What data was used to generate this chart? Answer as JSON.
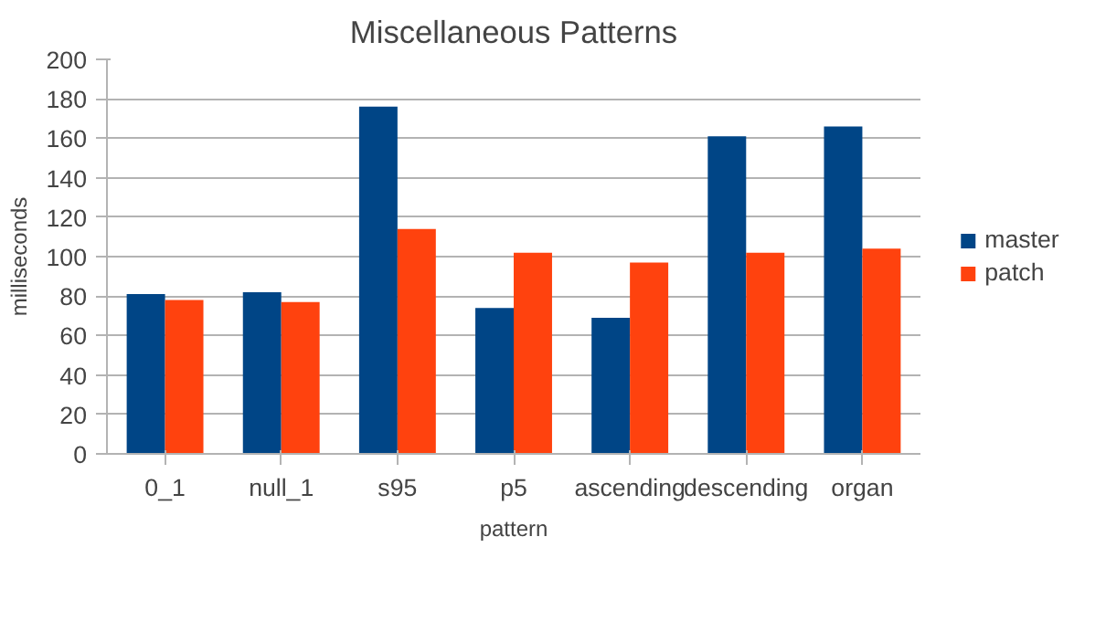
{
  "chart_data": {
    "type": "bar",
    "title": "Miscellaneous Patterns",
    "xlabel": "pattern",
    "ylabel": "milliseconds",
    "categories": [
      "0_1",
      "null_1",
      "s95",
      "p5",
      "ascending",
      "descending",
      "organ"
    ],
    "series": [
      {
        "name": "master",
        "color": "#004586",
        "values": [
          81,
          82,
          176,
          74,
          69,
          161,
          166
        ]
      },
      {
        "name": "patch",
        "color": "#ff420e",
        "values": [
          78,
          77,
          114,
          102,
          97,
          102,
          104
        ]
      }
    ],
    "ylim": [
      0,
      200
    ],
    "yticks": [
      0,
      20,
      40,
      60,
      80,
      100,
      120,
      140,
      160,
      180,
      200
    ],
    "grid": "y",
    "legend": "right"
  }
}
